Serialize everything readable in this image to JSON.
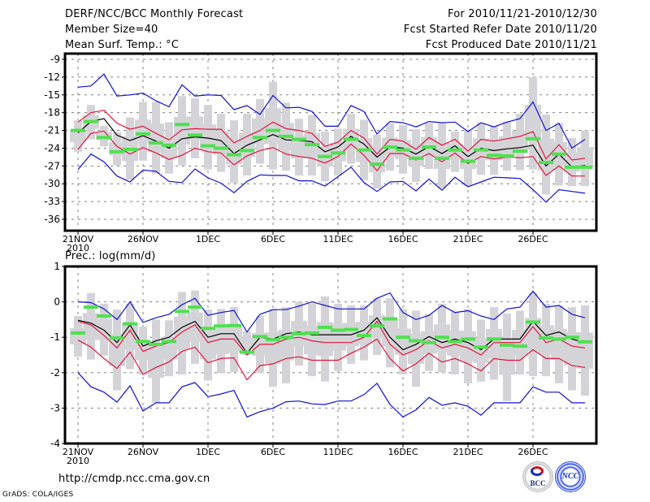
{
  "header": {
    "title": "DERF/NCC/BCC Monthly Forecast",
    "member_size": "Member Size=40",
    "variable": "Mean Surf. Temp.: °C",
    "period": "For 2010/11/21-2010/12/30",
    "started": "Fcst Started Refer Date 2010/11/20",
    "produced": "Fcst Produced Date 2010/11/21"
  },
  "footer": {
    "url": "http://cmdp.ncc.cma.gov.cn",
    "credit": "GrADS: COLA/IGES",
    "logos": [
      "BCC",
      "NCC"
    ]
  },
  "colors": {
    "max_min": "#1010d0",
    "quartile": "#e0143c",
    "median": "#000000",
    "obs_bar": "#50e050",
    "box": "#d4d4d8",
    "grid": "#808080"
  },
  "chart_data": [
    {
      "type": "line",
      "title": "Mean Surf. Temp.: °C",
      "xlabel": "",
      "ylabel": "°C",
      "x": [
        "21NOV",
        "22NOV",
        "23NOV",
        "24NOV",
        "25NOV",
        "26NOV",
        "27NOV",
        "28NOV",
        "29NOV",
        "30NOV",
        "1DEC",
        "2DEC",
        "3DEC",
        "4DEC",
        "5DEC",
        "6DEC",
        "7DEC",
        "8DEC",
        "9DEC",
        "10DEC",
        "11DEC",
        "12DEC",
        "13DEC",
        "14DEC",
        "15DEC",
        "16DEC",
        "17DEC",
        "18DEC",
        "19DEC",
        "20DEC",
        "21DEC",
        "22DEC",
        "23DEC",
        "24DEC",
        "25DEC",
        "26DEC",
        "27DEC",
        "28DEC",
        "29DEC",
        "30DEC"
      ],
      "xticks": [
        "21NOV\n2010",
        "26NOV",
        "1DEC",
        "6DEC",
        "11DEC",
        "16DEC",
        "21DEC",
        "26DEC"
      ],
      "yticks": [
        -9,
        -12,
        -15,
        -18,
        -21,
        -24,
        -27,
        -30,
        -33,
        -36
      ],
      "ylim": [
        -37.5,
        -8
      ],
      "grid": true,
      "series": [
        {
          "name": "max",
          "color": "blue",
          "values": [
            -13.7,
            -13.5,
            -11.5,
            -15.2,
            -15.0,
            -14.7,
            -16.0,
            -17.0,
            -13.3,
            -15.2,
            -15.0,
            -15.1,
            -17.5,
            -16.8,
            -18.3,
            -15.1,
            -17.2,
            -17.1,
            -17.8,
            -20.3,
            -20.3,
            -16.8,
            -17.8,
            -21.6,
            -19.5,
            -19.7,
            -20.4,
            -19.5,
            -19.7,
            -19.6,
            -21.2,
            -19.7,
            -20.4,
            -19.6,
            -19.0,
            -16.2,
            -21.0,
            -19.8,
            -24.0,
            -22.5
          ]
        },
        {
          "name": "upper quartile",
          "color": "red",
          "values": [
            -19.6,
            -18.0,
            -17.6,
            -19.8,
            -20.8,
            -20.3,
            -21.5,
            -22.6,
            -20.9,
            -20.7,
            -20.8,
            -20.8,
            -23.1,
            -22.0,
            -21.0,
            -19.6,
            -20.7,
            -21.0,
            -21.5,
            -23.7,
            -23.0,
            -21.0,
            -22.3,
            -25.0,
            -22.5,
            -22.8,
            -24.2,
            -22.2,
            -23.5,
            -22.5,
            -24.5,
            -22.5,
            -22.8,
            -22.4,
            -22.0,
            -21.2,
            -25.8,
            -23.4,
            -26.0,
            -25.7
          ]
        },
        {
          "name": "median",
          "color": "black",
          "values": [
            -21.4,
            -19.5,
            -19.0,
            -21.8,
            -22.7,
            -21.9,
            -22.8,
            -24.0,
            -22.4,
            -22.1,
            -22.3,
            -22.7,
            -24.9,
            -23.5,
            -22.6,
            -21.7,
            -22.6,
            -22.7,
            -22.9,
            -24.6,
            -23.8,
            -22.0,
            -23.3,
            -25.5,
            -23.8,
            -24.0,
            -25.0,
            -23.7,
            -24.9,
            -23.6,
            -25.4,
            -24.0,
            -24.4,
            -24.1,
            -23.9,
            -23.5,
            -27.0,
            -25.0,
            -27.2,
            -26.9
          ]
        },
        {
          "name": "lower quartile",
          "color": "red",
          "values": [
            -24.2,
            -21.5,
            -21.1,
            -23.7,
            -25.0,
            -23.9,
            -24.8,
            -25.9,
            -25.2,
            -24.0,
            -24.6,
            -24.8,
            -26.8,
            -25.3,
            -24.4,
            -23.9,
            -25.0,
            -25.4,
            -25.7,
            -26.5,
            -25.4,
            -23.3,
            -25.2,
            -27.8,
            -24.9,
            -24.9,
            -26.0,
            -24.9,
            -26.3,
            -24.8,
            -26.6,
            -25.4,
            -25.8,
            -25.5,
            -25.6,
            -25.4,
            -28.6,
            -27.0,
            -28.7,
            -28.7
          ]
        },
        {
          "name": "min",
          "color": "blue",
          "values": [
            -27.6,
            -25.0,
            -26.3,
            -28.7,
            -29.7,
            -27.7,
            -27.9,
            -29.6,
            -29.8,
            -27.5,
            -29.0,
            -29.9,
            -31.5,
            -29.6,
            -28.5,
            -28.6,
            -28.6,
            -29.5,
            -29.5,
            -30.4,
            -28.8,
            -27.2,
            -29.8,
            -31.3,
            -29.7,
            -29.6,
            -31.2,
            -29.2,
            -31.1,
            -28.9,
            -30.5,
            -29.7,
            -28.9,
            -29.0,
            -29.1,
            -31.0,
            -33.1,
            -31.0,
            -31.3,
            -31.6
          ]
        },
        {
          "name": "ensemble box upper",
          "color": "lightgray",
          "values": [
            -19.3,
            -16.7,
            -20.2,
            -21.3,
            -18.8,
            -16.2,
            -16.2,
            -19.6,
            -15.2,
            -15.6,
            -16.7,
            -18.2,
            -19.3,
            -18.2,
            -15.7,
            -12.8,
            -16.3,
            -19.0,
            -18.4,
            -21.2,
            -20.7,
            -18.2,
            -19.2,
            -21.7,
            -19.8,
            -20.1,
            -20.8,
            -19.8,
            -19.8,
            -21.2,
            -21.0,
            -19.7,
            -20.3,
            -19.5,
            -18.2,
            -12.0,
            -18.3,
            -19.8,
            -22.3,
            -21.0
          ]
        },
        {
          "name": "ensemble box lower",
          "color": "lightgray",
          "values": [
            -24.6,
            -22.5,
            -23.7,
            -26.9,
            -29.3,
            -26.1,
            -28.3,
            -28.3,
            -26.9,
            -25.7,
            -27.6,
            -28.0,
            -29.9,
            -28.6,
            -26.6,
            -27.6,
            -27.8,
            -28.6,
            -28.6,
            -29.6,
            -28.6,
            -26.6,
            -29.4,
            -30.8,
            -27.8,
            -28.3,
            -29.7,
            -27.5,
            -30.8,
            -28.0,
            -30.3,
            -28.5,
            -28.5,
            -27.8,
            -27.7,
            -27.6,
            -31.8,
            -30.3,
            -30.4,
            -30.4
          ]
        },
        {
          "name": "observed / analysis",
          "color": "green",
          "values": [
            -21.0,
            -19.5,
            -22.2,
            -24.6,
            -24.2,
            -21.6,
            -23.1,
            -23.5,
            -20.0,
            -21.8,
            -23.6,
            -24.0,
            -25.1,
            -24.4,
            -22.2,
            -21.0,
            -22.0,
            -22.5,
            -23.4,
            -25.4,
            -24.8,
            -22.5,
            -24.3,
            -26.7,
            -23.8,
            -24.3,
            -25.7,
            -23.8,
            -25.7,
            -24.3,
            -26.2,
            -24.3,
            -25.2,
            -25.3,
            -24.5,
            -22.4,
            -26.4,
            -25.0,
            -27.2,
            -27.2
          ]
        }
      ]
    },
    {
      "type": "line",
      "title": "Prec.: log(mm/d)",
      "xlabel": "",
      "ylabel": "log(mm/d)",
      "x": [
        "21NOV",
        "22NOV",
        "23NOV",
        "24NOV",
        "25NOV",
        "26NOV",
        "27NOV",
        "28NOV",
        "29NOV",
        "30NOV",
        "1DEC",
        "2DEC",
        "3DEC",
        "4DEC",
        "5DEC",
        "6DEC",
        "7DEC",
        "8DEC",
        "9DEC",
        "10DEC",
        "11DEC",
        "12DEC",
        "13DEC",
        "14DEC",
        "15DEC",
        "16DEC",
        "17DEC",
        "18DEC",
        "19DEC",
        "20DEC",
        "21DEC",
        "22DEC",
        "23DEC",
        "24DEC",
        "25DEC",
        "26DEC",
        "27DEC",
        "28DEC",
        "29DEC",
        "30DEC"
      ],
      "xticks": [
        "21NOV\n2010",
        "26NOV",
        "1DEC",
        "6DEC",
        "11DEC",
        "16DEC",
        "21DEC",
        "26DEC"
      ],
      "yticks": [
        1,
        0,
        -1,
        -2,
        -3,
        -4
      ],
      "ylim": [
        -4,
        1
      ],
      "grid": true,
      "series": [
        {
          "name": "max",
          "color": "blue",
          "values": [
            0.0,
            -0.02,
            -0.2,
            -0.5,
            0.0,
            -0.58,
            -0.45,
            -0.35,
            -0.08,
            0.1,
            -0.38,
            -0.3,
            -0.24,
            -0.85,
            -0.35,
            -0.22,
            -0.22,
            -0.12,
            0.0,
            -0.1,
            -0.2,
            -0.2,
            -0.2,
            0.1,
            0.25,
            -0.3,
            -0.5,
            -0.38,
            -0.1,
            -0.3,
            -0.25,
            -0.4,
            -0.5,
            -0.2,
            -0.15,
            0.3,
            -0.15,
            -0.1,
            -0.35,
            -0.45
          ]
        },
        {
          "name": "upper quartile",
          "color": "red",
          "values": [
            -0.55,
            -0.65,
            -0.95,
            -1.3,
            -0.8,
            -1.4,
            -1.25,
            -1.15,
            -0.85,
            -0.65,
            -1.15,
            -1.05,
            -1.05,
            -1.5,
            -1.2,
            -1.2,
            -1.05,
            -1.0,
            -1.1,
            -1.15,
            -1.15,
            -1.15,
            -1.0,
            -0.55,
            -1.2,
            -1.5,
            -1.35,
            -1.1,
            -1.3,
            -1.2,
            -1.3,
            -1.5,
            -1.15,
            -1.15,
            -1.15,
            -0.7,
            -1.15,
            -1.05,
            -1.25,
            -1.3
          ]
        },
        {
          "name": "median",
          "color": "black",
          "values": [
            -0.52,
            -0.6,
            -0.8,
            -1.15,
            -0.65,
            -1.25,
            -1.1,
            -1.0,
            -0.72,
            -0.55,
            -1.0,
            -0.9,
            -0.9,
            -1.45,
            -1.0,
            -1.05,
            -0.9,
            -0.85,
            -0.93,
            -0.93,
            -0.93,
            -0.93,
            -0.8,
            -0.45,
            -1.0,
            -1.35,
            -1.2,
            -0.98,
            -1.15,
            -1.05,
            -1.15,
            -1.35,
            -1.05,
            -1.05,
            -1.05,
            -0.55,
            -0.95,
            -0.85,
            -1.05,
            -1.15
          ]
        },
        {
          "name": "lower quartile",
          "color": "red",
          "values": [
            -1.08,
            -1.28,
            -1.6,
            -1.88,
            -1.42,
            -2.05,
            -1.85,
            -1.7,
            -1.4,
            -1.28,
            -1.72,
            -1.6,
            -1.58,
            -2.2,
            -1.8,
            -1.75,
            -1.6,
            -1.55,
            -1.65,
            -1.65,
            -1.65,
            -1.45,
            -1.28,
            -1.05,
            -1.6,
            -1.95,
            -1.75,
            -1.45,
            -1.7,
            -1.6,
            -1.75,
            -1.95,
            -1.6,
            -1.65,
            -1.65,
            -1.35,
            -1.6,
            -1.6,
            -1.8,
            -1.85
          ]
        },
        {
          "name": "min",
          "color": "blue",
          "values": [
            -2.0,
            -2.4,
            -2.55,
            -2.83,
            -2.37,
            -3.08,
            -2.85,
            -2.85,
            -2.4,
            -2.28,
            -2.68,
            -2.6,
            -2.5,
            -3.25,
            -3.1,
            -3.0,
            -2.82,
            -2.8,
            -2.88,
            -2.9,
            -2.8,
            -2.8,
            -2.62,
            -2.3,
            -2.9,
            -3.25,
            -3.05,
            -2.7,
            -2.92,
            -2.85,
            -2.95,
            -3.2,
            -2.85,
            -2.85,
            -2.85,
            -2.4,
            -2.55,
            -2.55,
            -2.85,
            -2.85
          ]
        },
        {
          "name": "ensemble box upper",
          "color": "lightgray",
          "values": [
            -0.4,
            0.25,
            -0.05,
            -0.22,
            -0.05,
            -0.7,
            -0.5,
            -0.52,
            0.28,
            0.32,
            -0.22,
            -0.2,
            -0.15,
            -0.82,
            -0.4,
            -0.2,
            -0.15,
            0.0,
            -0.05,
            0.15,
            -0.05,
            -0.1,
            -0.1,
            0.1,
            0.1,
            -0.2,
            -0.25,
            -0.35,
            -0.05,
            -0.28,
            -0.2,
            -0.5,
            -0.15,
            -0.33,
            -0.25,
            0.25,
            -0.05,
            -0.1,
            -0.15,
            -0.1
          ]
        },
        {
          "name": "ensemble box lower",
          "color": "lightgray",
          "values": [
            -1.55,
            -1.63,
            -1.52,
            -2.5,
            -1.9,
            -2.05,
            -2.85,
            -2.1,
            -2.05,
            -1.75,
            -2.22,
            -2.02,
            -1.98,
            -1.5,
            -2.0,
            -2.4,
            -2.3,
            -1.8,
            -2.1,
            -2.25,
            -1.95,
            -1.75,
            -1.65,
            -1.5,
            -1.85,
            -2.05,
            -2.4,
            -1.95,
            -2.0,
            -2.05,
            -2.3,
            -2.25,
            -2.2,
            -2.8,
            -2.05,
            -2.1,
            -2.1,
            -2.3,
            -2.5,
            -2.65
          ]
        },
        {
          "name": "observed / analysis",
          "color": "green",
          "values": [
            -0.88,
            -0.15,
            -0.4,
            -1.02,
            -0.62,
            -1.12,
            -1.2,
            -1.12,
            -0.27,
            -0.15,
            -0.75,
            -0.68,
            -0.67,
            -1.42,
            -0.98,
            -1.07,
            -1.0,
            -0.9,
            -0.88,
            -0.72,
            -0.8,
            -0.78,
            -0.95,
            -0.68,
            -0.48,
            -1.0,
            -1.1,
            -1.15,
            -1.0,
            -1.12,
            -1.05,
            -1.28,
            -1.05,
            -1.22,
            -1.25,
            -0.57,
            -1.02,
            -1.05,
            -1.0,
            -1.13
          ]
        }
      ]
    }
  ]
}
